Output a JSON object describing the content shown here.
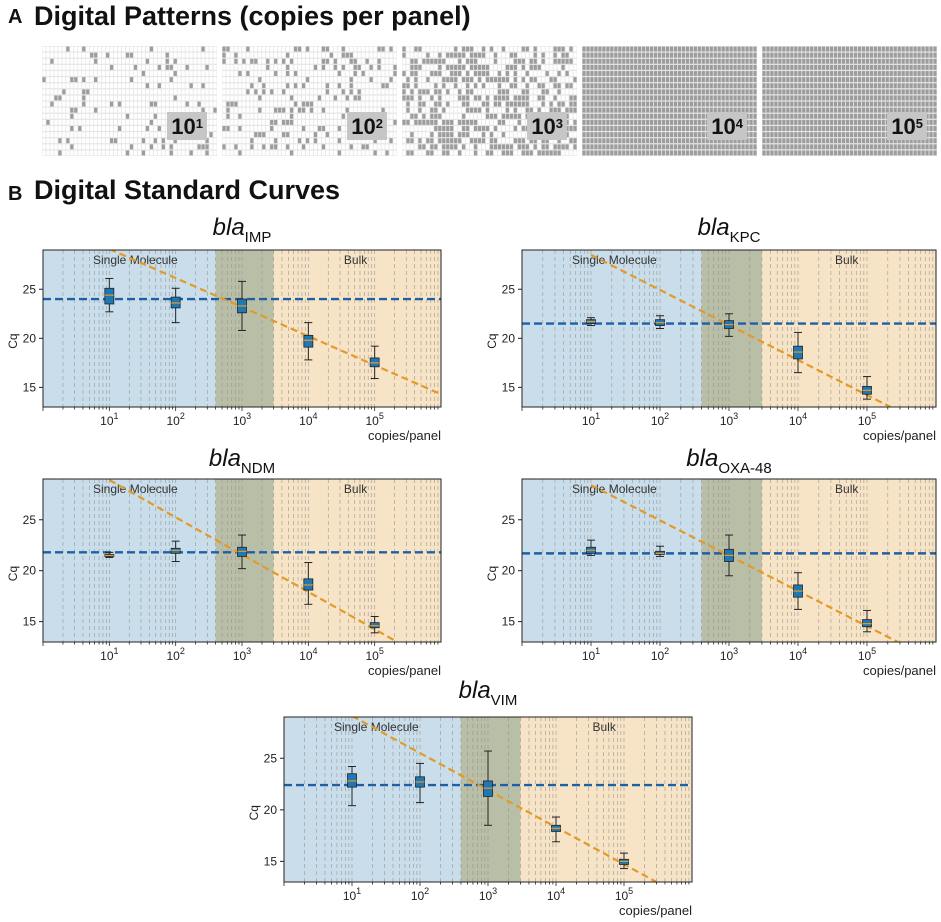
{
  "sections": {
    "a": {
      "letter": "A",
      "title": "Digital Patterns (copies per panel)"
    },
    "b": {
      "letter": "B",
      "title": "Digital Standard Curves"
    }
  },
  "patterns": [
    {
      "base": "10",
      "exp": "1",
      "density": 0.1
    },
    {
      "base": "10",
      "exp": "2",
      "density": 0.22
    },
    {
      "base": "10",
      "exp": "3",
      "density": 0.5
    },
    {
      "base": "10",
      "exp": "4",
      "density": 1.0
    },
    {
      "base": "10",
      "exp": "5",
      "density": 1.0
    }
  ],
  "colors": {
    "single_region": "#c9deea",
    "overlap_region": "#b9bfa7",
    "bulk_region": "#f7e4c6",
    "horizontal_line": "#1f5fa6",
    "fit_line": "#e39a27",
    "box_fill": "#1f77b4"
  },
  "chart_data": [
    {
      "type": "box",
      "title_prefix": "bla",
      "title_sub": "IMP",
      "xlabel": "copies/panel",
      "ylabel": "Cq",
      "xscale": "log",
      "xlim": [
        1,
        1000000
      ],
      "ylim": [
        13,
        29
      ],
      "yticks": [
        15,
        20,
        25
      ],
      "xticks": [
        {
          "base": "10",
          "exp": "1"
        },
        {
          "base": "10",
          "exp": "2"
        },
        {
          "base": "10",
          "exp": "3"
        },
        {
          "base": "10",
          "exp": "4"
        },
        {
          "base": "10",
          "exp": "5"
        }
      ],
      "regions": {
        "single_label": "Single Molecule",
        "bulk_label": "Bulk",
        "overlap": [
          400,
          3000
        ]
      },
      "hline": 24.0,
      "fit": {
        "x1": 10,
        "y1": 29.1,
        "x2": 1000000,
        "y2": 14.3
      },
      "boxes": [
        {
          "x": 10,
          "min": 22.7,
          "q1": 23.5,
          "median": 24.4,
          "q3": 25.1,
          "max": 26.1
        },
        {
          "x": 100,
          "min": 21.6,
          "q1": 23.1,
          "median": 23.6,
          "q3": 24.2,
          "max": 25.1
        },
        {
          "x": 1000,
          "min": 20.8,
          "q1": 22.6,
          "median": 23.3,
          "q3": 24.0,
          "max": 25.8
        },
        {
          "x": 10000,
          "min": 17.8,
          "q1": 19.1,
          "median": 19.8,
          "q3": 20.3,
          "max": 21.6
        },
        {
          "x": 100000,
          "min": 15.9,
          "q1": 17.1,
          "median": 17.5,
          "q3": 18.0,
          "max": 19.2
        }
      ]
    },
    {
      "type": "box",
      "title_prefix": "bla",
      "title_sub": "KPC",
      "xlabel": "copies/panel",
      "ylabel": "Cq",
      "xscale": "log",
      "xlim": [
        1,
        1000000
      ],
      "ylim": [
        13,
        29
      ],
      "yticks": [
        15,
        20,
        25
      ],
      "xticks": [
        {
          "base": "10",
          "exp": "1"
        },
        {
          "base": "10",
          "exp": "2"
        },
        {
          "base": "10",
          "exp": "3"
        },
        {
          "base": "10",
          "exp": "4"
        },
        {
          "base": "10",
          "exp": "5"
        }
      ],
      "regions": {
        "single_label": "Single Molecule",
        "bulk_label": "Bulk",
        "overlap": [
          400,
          3000
        ]
      },
      "hline": 21.5,
      "fit": {
        "x1": 10,
        "y1": 28.5,
        "x2": 220000,
        "y2": 13.0
      },
      "boxes": [
        {
          "x": 10,
          "min": 21.3,
          "q1": 21.5,
          "median": 21.7,
          "q3": 21.9,
          "max": 22.1
        },
        {
          "x": 100,
          "min": 21.0,
          "q1": 21.3,
          "median": 21.6,
          "q3": 21.9,
          "max": 22.3
        },
        {
          "x": 1000,
          "min": 20.2,
          "q1": 21.0,
          "median": 21.4,
          "q3": 21.8,
          "max": 22.5
        },
        {
          "x": 10000,
          "min": 16.5,
          "q1": 17.9,
          "median": 18.6,
          "q3": 19.2,
          "max": 20.6
        },
        {
          "x": 100000,
          "min": 13.8,
          "q1": 14.3,
          "median": 14.7,
          "q3": 15.1,
          "max": 16.1
        }
      ]
    },
    {
      "type": "box",
      "title_prefix": "bla",
      "title_sub": "NDM",
      "xlabel": "copies/panel",
      "ylabel": "Cq",
      "xscale": "log",
      "xlim": [
        1,
        1000000
      ],
      "ylim": [
        13,
        29
      ],
      "yticks": [
        15,
        20,
        25
      ],
      "xticks": [
        {
          "base": "10",
          "exp": "1"
        },
        {
          "base": "10",
          "exp": "2"
        },
        {
          "base": "10",
          "exp": "3"
        },
        {
          "base": "10",
          "exp": "4"
        },
        {
          "base": "10",
          "exp": "5"
        }
      ],
      "regions": {
        "single_label": "Single Molecule",
        "bulk_label": "Bulk",
        "overlap": [
          400,
          3000
        ]
      },
      "hline": 21.8,
      "fit": {
        "x1": 10,
        "y1": 28.9,
        "x2": 220000,
        "y2": 13.0
      },
      "boxes": [
        {
          "x": 10,
          "min": 21.3,
          "q1": 21.4,
          "median": 21.5,
          "q3": 21.6,
          "max": 21.8
        },
        {
          "x": 100,
          "min": 20.9,
          "q1": 21.7,
          "median": 22.0,
          "q3": 22.2,
          "max": 22.9
        },
        {
          "x": 1000,
          "min": 20.2,
          "q1": 21.4,
          "median": 21.9,
          "q3": 22.3,
          "max": 23.5
        },
        {
          "x": 10000,
          "min": 16.7,
          "q1": 18.1,
          "median": 18.6,
          "q3": 19.2,
          "max": 20.8
        },
        {
          "x": 100000,
          "min": 13.9,
          "q1": 14.4,
          "median": 14.6,
          "q3": 14.9,
          "max": 15.5
        }
      ]
    },
    {
      "type": "box",
      "title_prefix": "bla",
      "title_sub": "OXA-48",
      "xlabel": "copies/panel",
      "ylabel": "Cq",
      "xscale": "log",
      "xlim": [
        1,
        1000000
      ],
      "ylim": [
        13,
        29
      ],
      "yticks": [
        15,
        20,
        25
      ],
      "xticks": [
        {
          "base": "10",
          "exp": "1"
        },
        {
          "base": "10",
          "exp": "2"
        },
        {
          "base": "10",
          "exp": "3"
        },
        {
          "base": "10",
          "exp": "4"
        },
        {
          "base": "10",
          "exp": "5"
        }
      ],
      "regions": {
        "single_label": "Single Molecule",
        "bulk_label": "Bulk",
        "overlap": [
          400,
          3000
        ]
      },
      "hline": 21.7,
      "fit": {
        "x1": 10,
        "y1": 28.4,
        "x2": 280000,
        "y2": 13.0
      },
      "boxes": [
        {
          "x": 10,
          "min": 21.5,
          "q1": 21.7,
          "median": 22.0,
          "q3": 22.3,
          "max": 23.0
        },
        {
          "x": 100,
          "min": 21.4,
          "q1": 21.6,
          "median": 21.7,
          "q3": 21.9,
          "max": 22.4
        },
        {
          "x": 1000,
          "min": 19.5,
          "q1": 20.9,
          "median": 21.5,
          "q3": 22.1,
          "max": 23.5
        },
        {
          "x": 10000,
          "min": 16.2,
          "q1": 17.4,
          "median": 18.0,
          "q3": 18.6,
          "max": 19.8
        },
        {
          "x": 100000,
          "min": 14.0,
          "q1": 14.5,
          "median": 14.8,
          "q3": 15.2,
          "max": 16.1
        }
      ]
    },
    {
      "type": "box",
      "title_prefix": "bla",
      "title_sub": "VIM",
      "xlabel": "copies/panel",
      "ylabel": "Cq",
      "xscale": "log",
      "xlim": [
        1,
        1000000
      ],
      "ylim": [
        13,
        29
      ],
      "yticks": [
        15,
        20,
        25
      ],
      "xticks": [
        {
          "base": "10",
          "exp": "1"
        },
        {
          "base": "10",
          "exp": "2"
        },
        {
          "base": "10",
          "exp": "3"
        },
        {
          "base": "10",
          "exp": "4"
        },
        {
          "base": "10",
          "exp": "5"
        }
      ],
      "regions": {
        "single_label": "Single Molecule",
        "bulk_label": "Bulk",
        "overlap": [
          400,
          3000
        ]
      },
      "hline": 22.4,
      "fit": {
        "x1": 10,
        "y1": 29.1,
        "x2": 300000,
        "y2": 13.0
      },
      "boxes": [
        {
          "x": 10,
          "min": 20.4,
          "q1": 22.2,
          "median": 22.8,
          "q3": 23.5,
          "max": 24.2
        },
        {
          "x": 100,
          "min": 20.7,
          "q1": 22.2,
          "median": 22.7,
          "q3": 23.2,
          "max": 24.5
        },
        {
          "x": 1000,
          "min": 18.5,
          "q1": 21.3,
          "median": 22.1,
          "q3": 22.8,
          "max": 25.7
        },
        {
          "x": 10000,
          "min": 16.9,
          "q1": 17.9,
          "median": 18.2,
          "q3": 18.5,
          "max": 19.3
        },
        {
          "x": 100000,
          "min": 14.3,
          "q1": 14.7,
          "median": 15.0,
          "q3": 15.2,
          "max": 15.8
        }
      ]
    }
  ]
}
